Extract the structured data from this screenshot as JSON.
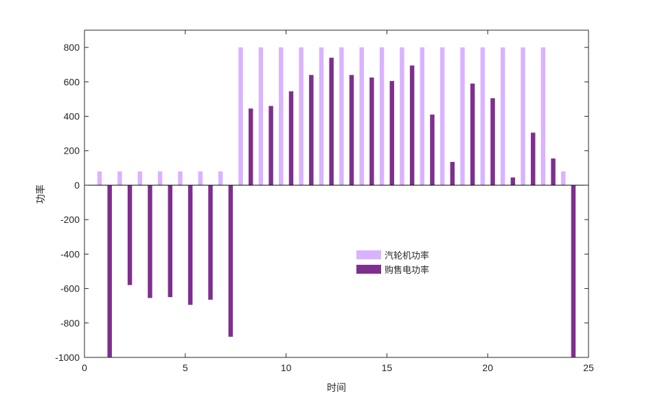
{
  "chart_data": {
    "type": "bar",
    "title": "",
    "xlabel": "时间",
    "ylabel": "功率",
    "xlim": [
      0,
      25
    ],
    "ylim": [
      -1000,
      900
    ],
    "xticks": [
      0,
      5,
      10,
      15,
      20,
      25
    ],
    "yticks": [
      -1000,
      -800,
      -600,
      -400,
      -200,
      0,
      200,
      400,
      600,
      800
    ],
    "grid": false,
    "legend_position": "center-right",
    "categories": [
      1,
      2,
      3,
      4,
      5,
      6,
      7,
      8,
      9,
      10,
      11,
      12,
      13,
      14,
      15,
      16,
      17,
      18,
      19,
      20,
      21,
      22,
      23,
      24
    ],
    "series": [
      {
        "name": "汽轮机功率",
        "color": "#d9b3ff",
        "values": [
          80,
          80,
          80,
          80,
          80,
          80,
          80,
          800,
          800,
          800,
          800,
          800,
          800,
          800,
          800,
          800,
          800,
          800,
          800,
          800,
          800,
          800,
          800,
          80
        ]
      },
      {
        "name": "购售电功率",
        "color": "#7e2f8e",
        "values": [
          -1000,
          -580,
          -655,
          -650,
          -695,
          -665,
          -880,
          445,
          460,
          545,
          640,
          740,
          640,
          625,
          605,
          695,
          410,
          135,
          590,
          505,
          45,
          305,
          155,
          -1000
        ]
      }
    ]
  }
}
